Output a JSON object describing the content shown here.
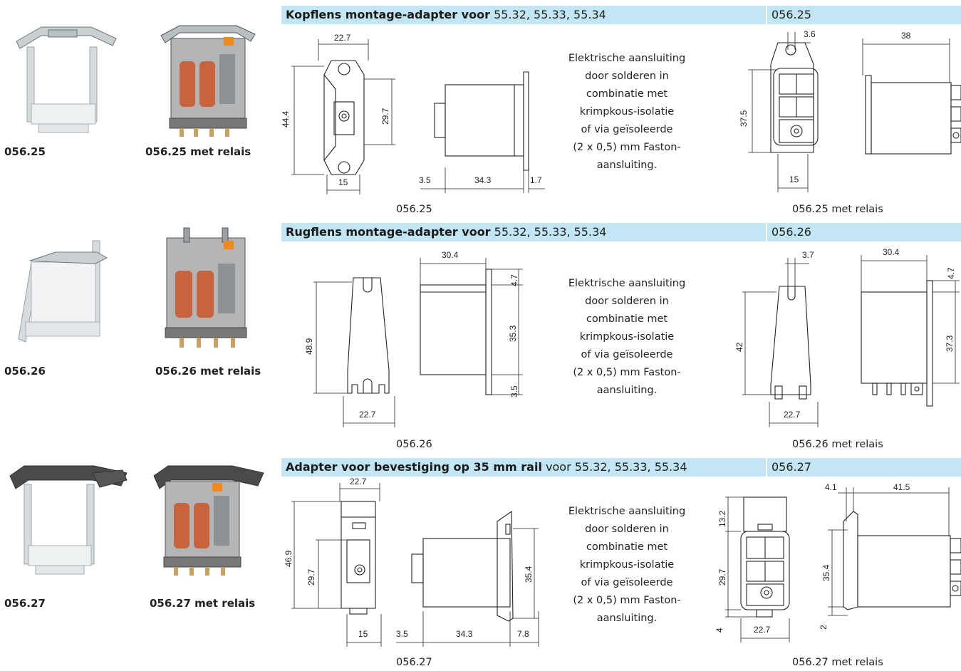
{
  "rows": [
    {
      "photo_adapter_label": "056.25",
      "photo_relay_label": "056.25 met relais",
      "band_title_bold": "Kopflens montage-adapter voor",
      "band_title_rest": "55.32, 55.33, 55.34",
      "band_code": "056.25",
      "dims_front": [
        "22.7",
        "44.4",
        "29.7",
        "15"
      ],
      "dims_side": [
        "3.5",
        "34.3",
        "1.7"
      ],
      "description": [
        "Elektrische aansluiting",
        "door solderen in",
        "combinatie met",
        "krimpkous-isolatie",
        "of via geïsoleerde",
        "(2 x 0,5) mm Faston-",
        "aansluiting."
      ],
      "caption_left": "056.25",
      "dims_relay_front": [
        "3.6",
        "37.5",
        "15"
      ],
      "dims_relay_side": [
        "38"
      ],
      "caption_right": "056.25 met relais"
    },
    {
      "photo_adapter_label": "056.26",
      "photo_relay_label": "056.26 met relais",
      "band_title_bold": "Rugflens montage-adapter voor",
      "band_title_rest": "55.32, 55.33, 55.34",
      "band_code": "056.26",
      "dims_front": [
        "48.9",
        "22.7"
      ],
      "dims_side": [
        "30.4",
        "4.7",
        "35.3",
        "3.5"
      ],
      "description": [
        "Elektrische aansluiting",
        "door solderen in",
        "combinatie met",
        "krimpkous-isolatie",
        "of via geïsoleerde",
        "(2 x 0,5) mm Faston-",
        "aansluiting."
      ],
      "caption_left": "056.26",
      "dims_relay_front": [
        "3.7",
        "42",
        "22.7"
      ],
      "dims_relay_side": [
        "30.4",
        "4.7",
        "37.3"
      ],
      "caption_right": "056.26 met relais"
    },
    {
      "photo_adapter_label": "056.27",
      "photo_relay_label": "056.27 met relais",
      "band_title_bold": "Adapter voor bevestiging op 35 mm rail",
      "band_title_rest": "voor 55.32, 55.33, 55.34",
      "band_code": "056.27",
      "dims_front": [
        "22.7",
        "46.9",
        "29.7",
        "15"
      ],
      "dims_side": [
        "3.5",
        "34.3",
        "7.8",
        "35.4"
      ],
      "description": [
        "Elektrische aansluiting",
        "door solderen in",
        "combinatie met",
        "krimpkous-isolatie",
        "of via geïsoleerde",
        "(2 x 0,5) mm Faston-",
        "aansluiting."
      ],
      "caption_left": "056.27",
      "dims_relay_front": [
        "13.2",
        "29.7",
        "4",
        "22.7"
      ],
      "dims_relay_side": [
        "4.1",
        "41.5",
        "35.4",
        "2"
      ],
      "caption_right": "056.27 met relais"
    }
  ],
  "colors": {
    "band": "#c3e6f4",
    "relay_coil": "#c8643c",
    "relay_indicator": "#f08a1e"
  }
}
